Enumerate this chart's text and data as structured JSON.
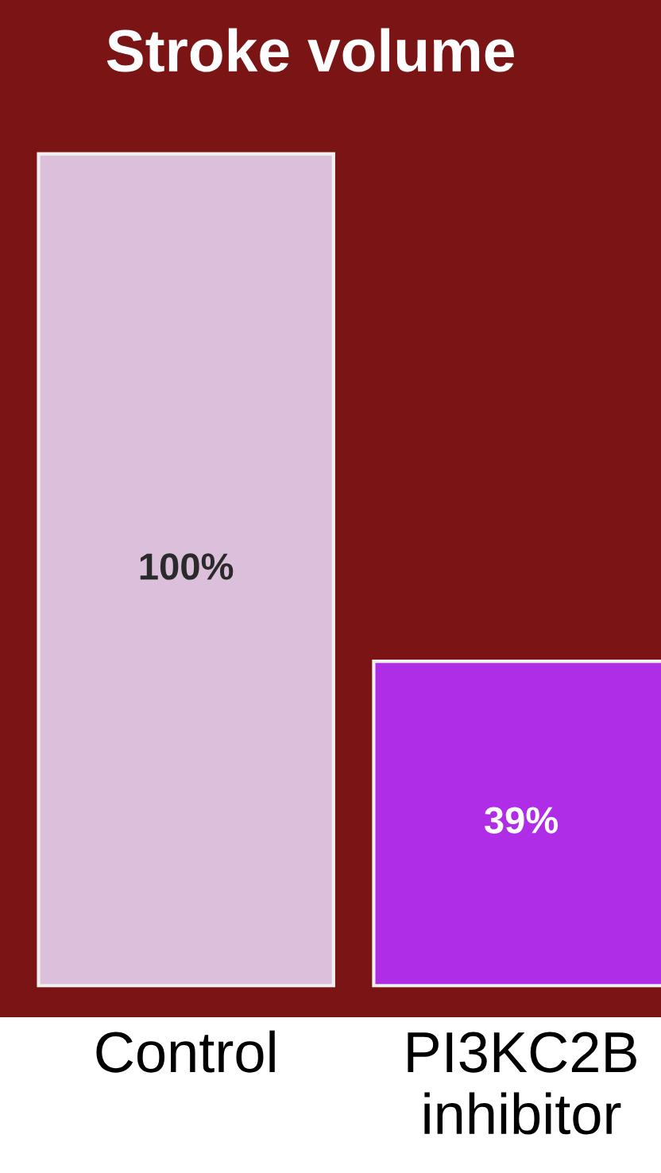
{
  "chart_data": {
    "type": "bar",
    "title": "Stroke volume",
    "categories": [
      "Control",
      "PI3KC2B\ninhibitor"
    ],
    "values": [
      100,
      39
    ],
    "value_labels": [
      "100%",
      "39%"
    ],
    "colors": [
      "#dcbfdb",
      "#b02de8"
    ]
  }
}
